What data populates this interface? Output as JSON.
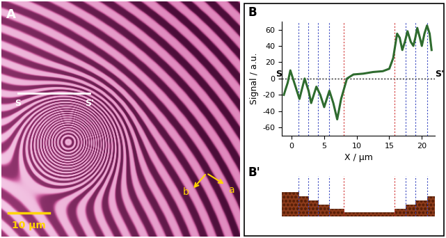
{
  "image_panel": {
    "label": "A",
    "scale_bar": "10 μm",
    "line_labels": [
      "S",
      "S'"
    ],
    "direction_labels": [
      "a",
      "b"
    ]
  },
  "chart_data": {
    "type": "line",
    "panel_label": "B",
    "endpoint_labels": [
      "S",
      "S'"
    ],
    "xlabel": "X / μm",
    "ylabel": "Signal / a.u.",
    "color": "#2e6b2e",
    "x": [
      -1.2,
      -0.6,
      -0.2,
      0.4,
      1.2,
      2.0,
      2.6,
      3.0,
      3.4,
      3.8,
      4.4,
      5.0,
      5.4,
      5.8,
      6.4,
      7.0,
      7.6,
      8.5,
      9.5,
      11.0,
      12.5,
      14.0,
      15.0,
      15.6,
      16.2,
      16.6,
      17.0,
      17.4,
      17.8,
      18.3,
      18.7,
      19.0,
      19.3,
      19.7,
      20.0,
      20.4,
      20.8,
      21.2,
      21.5
    ],
    "values": [
      -20,
      -5,
      10,
      -5,
      -25,
      0,
      -15,
      -30,
      -20,
      -10,
      -20,
      -35,
      -25,
      -15,
      -30,
      -50,
      -25,
      0,
      5,
      6,
      8,
      9,
      12,
      25,
      55,
      50,
      35,
      45,
      58,
      45,
      40,
      50,
      62,
      50,
      40,
      55,
      65,
      55,
      35
    ],
    "xlim": [
      -1.5,
      22
    ],
    "ylim": [
      -70,
      70
    ],
    "xticks": [
      0,
      5,
      10,
      15,
      20
    ],
    "yticks": [
      -60,
      -40,
      -20,
      0,
      20,
      40,
      60
    ],
    "guides": [
      {
        "x": 1.0,
        "color": "#3848c0"
      },
      {
        "x": 2.5,
        "color": "#3848c0"
      },
      {
        "x": 4.0,
        "color": "#3848c0"
      },
      {
        "x": 5.8,
        "color": "#3848c0"
      },
      {
        "x": 8.0,
        "color": "#d03030"
      },
      {
        "x": 15.8,
        "color": "#d03030"
      },
      {
        "x": 17.5,
        "color": "#3848c0"
      },
      {
        "x": 19.0,
        "color": "#3848c0"
      },
      {
        "x": 20.8,
        "color": "#3848c0"
      }
    ]
  },
  "schematic": {
    "label": "B'",
    "color": "#8b3a1a",
    "edges": [
      -1.5,
      1.0,
      2.5,
      4.0,
      5.8,
      8.0,
      15.8,
      17.5,
      19.0,
      20.8,
      22.0
    ],
    "levels": [
      6,
      5,
      4,
      3,
      2,
      1,
      2,
      3,
      4,
      5
    ],
    "ylim": [
      0,
      10
    ]
  }
}
